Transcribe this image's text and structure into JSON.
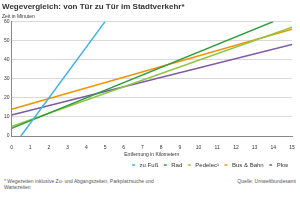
{
  "chart_data": {
    "type": "line",
    "title": "Wegevergleich: von Tür zu Tür im Stadtverkehr*",
    "y_label": "Zeit in Minuten",
    "x_label": "Entfernung in Kilometern",
    "series": [
      {
        "name": "zu Fuß",
        "color": "#3cb4e5",
        "x": [
          0.5,
          5
        ],
        "values": [
          0,
          60
        ]
      },
      {
        "name": "Rad",
        "color": "#2e9b3c",
        "x": [
          0,
          14
        ],
        "values": [
          4,
          60
        ]
      },
      {
        "name": "Pedelec¹",
        "color": "#8dc63f",
        "x": [
          0,
          15
        ],
        "values": [
          5,
          57
        ]
      },
      {
        "name": "Bus & Bahn",
        "color": "#f39200",
        "x": [
          0,
          15
        ],
        "values": [
          14,
          56
        ]
      },
      {
        "name": "Pkw",
        "color": "#7b5aa6",
        "x": [
          0,
          15
        ],
        "values": [
          11,
          48
        ]
      }
    ],
    "xlim": [
      0,
      15
    ],
    "xticks": [
      0,
      1,
      2,
      3,
      4,
      5,
      6,
      7,
      8,
      9,
      10,
      11,
      12,
      13,
      14,
      15
    ],
    "ylim": [
      0,
      60
    ],
    "yticks": [
      0,
      10,
      20,
      30,
      40,
      50,
      60
    ],
    "grid": true,
    "legend": "bottom",
    "annotations": [
      "* Wegezeiten inklusive Zu- und Abgangszeiten, Parkplatzsuche und Wartezeiten",
      "Quelle: Umweltbundesamt"
    ]
  }
}
